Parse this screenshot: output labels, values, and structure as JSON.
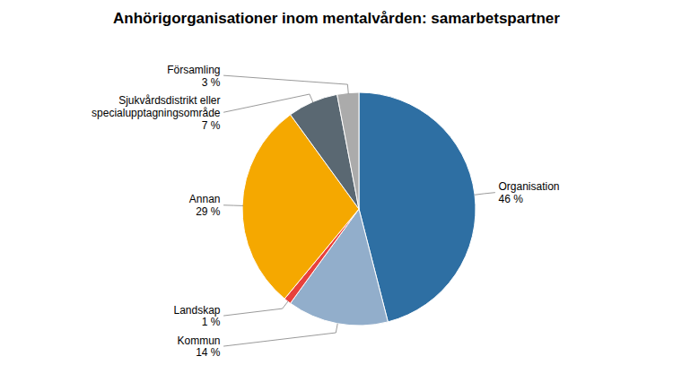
{
  "chart_data": {
    "type": "pie",
    "title": "Anhörigorganisationer inom mentalvården: samarbetspartner",
    "categories": [
      "Organisation",
      "Kommun",
      "Landskap",
      "Annan",
      "Sjukvårdsdistrikt eller\nspecialupptagningsområde",
      "Församling"
    ],
    "values": [
      46,
      14,
      1,
      29,
      7,
      3
    ],
    "value_labels": [
      "46 %",
      "14 %",
      "1 %",
      "29 %",
      "7 %",
      "3 %"
    ],
    "colors": [
      "#2E6FA3",
      "#92AECB",
      "#E8413C",
      "#F5A800",
      "#5A6872",
      "#ABABAB"
    ],
    "data_labels": true
  }
}
